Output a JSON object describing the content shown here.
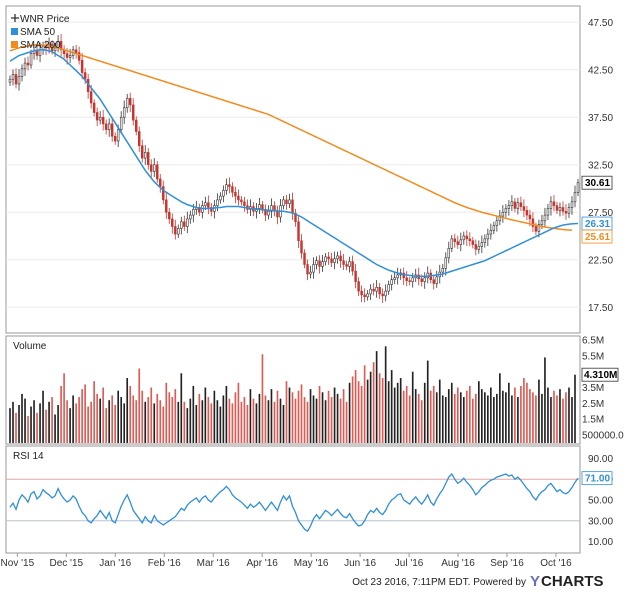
{
  "chart_data": [
    {
      "type": "line",
      "panel": "price",
      "legend": [
        {
          "name": "WNR Price",
          "color": "#333333",
          "marker": "cross"
        },
        {
          "name": "SMA 50",
          "color": "#2f8fd8",
          "marker": "square"
        },
        {
          "name": "SMA 200",
          "color": "#f08c1f",
          "marker": "square"
        }
      ],
      "legend_position": "top-left",
      "y_ticks": [
        47.5,
        42.5,
        37.5,
        32.5,
        27.5,
        22.5,
        17.5
      ],
      "y_tick_labels": [
        "47.50",
        "42.50",
        "37.50",
        "32.50",
        "27.50",
        "22.50",
        "17.50"
      ],
      "ylim": [
        15.0,
        49.0
      ],
      "x_ticks": [
        "Nov '15",
        "Dec '15",
        "Jan '16",
        "Feb '16",
        "Mar '16",
        "Apr '16",
        "May '16",
        "Jun '16",
        "Jul '16",
        "Aug '16",
        "Sep '16",
        "Oct '16"
      ],
      "last_values": [
        {
          "label": "30.61",
          "value": 30.61,
          "bg": "#ffffff",
          "fg": "#000000",
          "border": "#333333"
        },
        {
          "label": "26.31",
          "value": 26.31,
          "bg": "#ffffff",
          "fg": "#2f8fd8",
          "border": "#2f8fd8"
        },
        {
          "label": "25.61",
          "value": 25.61,
          "bg": "#ffffff",
          "fg": "#f08c1f",
          "border": "#f08c1f"
        }
      ],
      "series": [
        {
          "name": "WNR Price",
          "color": "#333333",
          "values": [
            41.5,
            42.0,
            41.0,
            41.8,
            42.6,
            43.2,
            43.0,
            44.2,
            44.5,
            44.0,
            44.6,
            45.0,
            44.8,
            45.2,
            44.5,
            44.8,
            45.5,
            44.6,
            44.2,
            43.8,
            44.0,
            44.6,
            44.3,
            43.5,
            42.2,
            41.5,
            40.2,
            39.0,
            38.0,
            37.2,
            37.5,
            36.8,
            36.2,
            36.8,
            35.5,
            35.0,
            36.2,
            37.5,
            38.5,
            39.5,
            38.8,
            37.2,
            36.0,
            34.5,
            33.2,
            33.8,
            32.5,
            31.8,
            32.5,
            31.0,
            30.2,
            28.8,
            27.5,
            26.8,
            26.0,
            25.2,
            25.8,
            26.5,
            26.0,
            26.8,
            27.2,
            27.8,
            28.0,
            27.5,
            28.2,
            28.5,
            28.0,
            27.6,
            28.2,
            28.8,
            29.2,
            29.8,
            30.4,
            30.2,
            29.6,
            29.2,
            28.8,
            28.6,
            28.2,
            27.8,
            28.1,
            27.6,
            27.9,
            28.3,
            27.8,
            27.2,
            27.6,
            28.2,
            27.6,
            27.0,
            28.2,
            28.8,
            28.4,
            28.8,
            27.4,
            26.5,
            24.5,
            23.2,
            22.0,
            21.0,
            21.2,
            22.0,
            22.4,
            21.8,
            22.3,
            22.8,
            22.6,
            22.2,
            22.6,
            22.9,
            22.4,
            22.0,
            21.8,
            22.3,
            21.3,
            20.2,
            19.2,
            18.8,
            18.6,
            18.9,
            19.4,
            19.2,
            19.6,
            18.9,
            18.7,
            19.2,
            19.9,
            20.4,
            20.6,
            20.9,
            21.1,
            20.6,
            20.3,
            20.2,
            20.6,
            20.9,
            20.5,
            20.2,
            20.6,
            21.1,
            20.4,
            20.0,
            20.7,
            21.2,
            21.6,
            22.7,
            23.7,
            24.7,
            24.4,
            24.1,
            24.6,
            25.0,
            24.7,
            24.5,
            24.1,
            23.6,
            23.9,
            24.3,
            24.7,
            25.2,
            25.6,
            26.1,
            26.6,
            27.1,
            27.5,
            27.9,
            28.2,
            28.6,
            27.9,
            28.5,
            28.1,
            27.7,
            27.2,
            26.8,
            26.0,
            25.5,
            26.2,
            26.6,
            27.2,
            27.9,
            28.6,
            28.2,
            27.7,
            28.0,
            27.6,
            27.4,
            28.0,
            28.6,
            29.6,
            30.61
          ]
        },
        {
          "name": "SMA 50",
          "color": "#2f8fd8",
          "values": [
            43.4,
            43.6,
            43.8,
            44.0,
            44.1,
            44.2,
            44.3,
            44.4,
            44.5,
            44.55,
            44.6,
            44.6,
            44.55,
            44.5,
            44.4,
            44.2,
            44.0,
            43.8,
            43.6,
            43.3,
            43.0,
            42.7,
            42.4,
            42.1,
            41.8,
            41.4,
            41.0,
            40.6,
            40.2,
            39.8,
            39.4,
            38.9,
            38.4,
            37.9,
            37.4,
            36.9,
            36.4,
            35.9,
            35.4,
            34.9,
            34.4,
            33.9,
            33.4,
            32.9,
            32.4,
            31.9,
            31.5,
            31.1,
            30.7,
            30.4,
            30.1,
            29.8,
            29.6,
            29.4,
            29.2,
            29.0,
            28.8,
            28.6,
            28.45,
            28.3,
            28.2,
            28.1,
            28.0,
            27.95,
            27.9,
            27.9,
            27.9,
            27.9,
            27.95,
            28.0,
            28.0,
            28.05,
            28.1,
            28.1,
            28.1,
            28.1,
            28.1,
            28.05,
            28.0,
            27.95,
            27.9,
            27.85,
            27.8,
            27.8,
            27.75,
            27.75,
            27.7,
            27.7,
            27.7,
            27.65,
            27.6,
            27.6,
            27.55,
            27.5,
            27.4,
            27.3,
            27.15,
            27.0,
            26.8,
            26.6,
            26.4,
            26.2,
            26.0,
            25.8,
            25.6,
            25.4,
            25.2,
            25.0,
            24.8,
            24.6,
            24.4,
            24.2,
            24.0,
            23.8,
            23.6,
            23.4,
            23.2,
            23.0,
            22.8,
            22.6,
            22.4,
            22.2,
            22.0,
            21.85,
            21.7,
            21.55,
            21.4,
            21.3,
            21.2,
            21.1,
            21.0,
            20.95,
            20.9,
            20.85,
            20.8,
            20.78,
            20.75,
            20.75,
            20.75,
            20.78,
            20.8,
            20.85,
            20.9,
            20.95,
            21.0,
            21.1,
            21.2,
            21.3,
            21.4,
            21.5,
            21.6,
            21.7,
            21.8,
            21.9,
            22.0,
            22.1,
            22.2,
            22.3,
            22.4,
            22.55,
            22.7,
            22.85,
            23.0,
            23.15,
            23.3,
            23.45,
            23.6,
            23.75,
            23.9,
            24.05,
            24.2,
            24.35,
            24.5,
            24.65,
            24.8,
            24.95,
            25.1,
            25.25,
            25.4,
            25.55,
            25.7,
            25.85,
            25.95,
            26.05,
            26.15,
            26.2,
            26.25,
            26.28,
            26.3,
            26.31
          ]
        },
        {
          "name": "SMA 200",
          "color": "#f08c1f",
          "values": [
            44.5,
            44.6,
            44.7,
            44.8,
            44.9,
            44.95,
            45.0,
            45.05,
            45.1,
            45.1,
            45.1,
            45.1,
            45.05,
            45.0,
            44.95,
            44.9,
            44.8,
            44.7,
            44.6,
            44.5,
            44.4,
            44.3,
            44.2,
            44.1,
            44.0,
            43.9,
            43.8,
            43.7,
            43.6,
            43.5,
            43.4,
            43.3,
            43.2,
            43.1,
            43.0,
            42.9,
            42.8,
            42.7,
            42.6,
            42.5,
            42.4,
            42.3,
            42.2,
            42.1,
            42.0,
            41.9,
            41.8,
            41.7,
            41.6,
            41.5,
            41.4,
            41.3,
            41.2,
            41.1,
            41.0,
            40.9,
            40.8,
            40.7,
            40.6,
            40.5,
            40.4,
            40.3,
            40.2,
            40.1,
            40.0,
            39.9,
            39.8,
            39.7,
            39.6,
            39.5,
            39.4,
            39.3,
            39.2,
            39.1,
            39.0,
            38.9,
            38.8,
            38.7,
            38.6,
            38.5,
            38.4,
            38.3,
            38.2,
            38.1,
            38.0,
            37.9,
            37.8,
            37.65,
            37.5,
            37.35,
            37.2,
            37.05,
            36.9,
            36.75,
            36.6,
            36.45,
            36.3,
            36.15,
            36.0,
            35.85,
            35.7,
            35.55,
            35.4,
            35.25,
            35.1,
            34.95,
            34.8,
            34.65,
            34.5,
            34.35,
            34.2,
            34.05,
            33.9,
            33.75,
            33.6,
            33.45,
            33.3,
            33.15,
            33.0,
            32.85,
            32.7,
            32.55,
            32.4,
            32.25,
            32.1,
            31.95,
            31.8,
            31.65,
            31.5,
            31.35,
            31.2,
            31.05,
            30.9,
            30.75,
            30.6,
            30.45,
            30.3,
            30.15,
            30.0,
            29.85,
            29.7,
            29.55,
            29.4,
            29.25,
            29.1,
            28.95,
            28.8,
            28.65,
            28.5,
            28.38,
            28.25,
            28.13,
            28.0,
            27.9,
            27.8,
            27.7,
            27.6,
            27.5,
            27.42,
            27.34,
            27.26,
            27.18,
            27.1,
            27.02,
            26.94,
            26.86,
            26.78,
            26.7,
            26.63,
            26.56,
            26.49,
            26.42,
            26.35,
            26.28,
            26.21,
            26.14,
            26.07,
            26.0,
            25.95,
            25.9,
            25.85,
            25.8,
            25.76,
            25.72,
            25.68,
            25.65,
            25.63,
            25.61
          ]
        }
      ]
    },
    {
      "type": "bar",
      "panel": "volume",
      "title": "Volume",
      "up_color": "#222222",
      "down_color": "#e05a52",
      "y_ticks": [
        500000,
        1500000,
        2500000,
        3500000,
        4500000,
        5500000,
        6500000
      ],
      "y_tick_labels": [
        "500000.0",
        "1.5M",
        "2.5M",
        "3.5M",
        "4.5M",
        "5.5M",
        "6.5M"
      ],
      "ylim": [
        0,
        6500000
      ],
      "last_value": {
        "label": "4.310M",
        "value": 4310000
      },
      "values": [
        2200000,
        2600000,
        1900000,
        2400000,
        3100000,
        2800000,
        1700000,
        2300000,
        2700000,
        1900000,
        2500000,
        3300000,
        2100000,
        2600000,
        2900000,
        1800000,
        2400000,
        3600000,
        4400000,
        2700000,
        2200000,
        3000000,
        2500000,
        2900000,
        3400000,
        3700000,
        2300000,
        2600000,
        3900000,
        3100000,
        2800000,
        3500000,
        2200000,
        2700000,
        3000000,
        2400000,
        3300000,
        2900000,
        2500000,
        4100000,
        3600000,
        3000000,
        2700000,
        4700000,
        3300000,
        2600000,
        2900000,
        3500000,
        2500000,
        3100000,
        2700000,
        2300000,
        3800000,
        3200000,
        2900000,
        3400000,
        2600000,
        4400000,
        2600000,
        2200000,
        2800000,
        3600000,
        2400000,
        3100000,
        2700000,
        3500000,
        2900000,
        2500000,
        3300000,
        2700000,
        2300000,
        3000000,
        3600000,
        2800000,
        2500000,
        3200000,
        3800000,
        2600000,
        2900000,
        2400000,
        3400000,
        2800000,
        2500000,
        3100000,
        5600000,
        3000000,
        2700000,
        3400000,
        2600000,
        3300000,
        2800000,
        2400000,
        3900000,
        3500000,
        3200000,
        2800000,
        3300000,
        3700000,
        2900000,
        2600000,
        3400000,
        3000000,
        2800000,
        3600000,
        3200000,
        2700000,
        3300000,
        2900000,
        3500000,
        3100000,
        2800000,
        3400000,
        2600000,
        3800000,
        4200000,
        4600000,
        3900000,
        3600000,
        4900000,
        4000000,
        4500000,
        5100000,
        5800000,
        4400000,
        4100000,
        6100000,
        3900000,
        4600000,
        3500000,
        3800000,
        4100000,
        3300000,
        3600000,
        3000000,
        4500000,
        3400000,
        3100000,
        2700000,
        3800000,
        5200000,
        3300000,
        3600000,
        3200000,
        4000000,
        3000000,
        2900000,
        3400000,
        3800000,
        3100000,
        3500000,
        3200000,
        2900000,
        3300000,
        3600000,
        2800000,
        3100000,
        3900000,
        3400000,
        3200000,
        3000000,
        3500000,
        2900000,
        3100000,
        4400000,
        3300000,
        3200000,
        3800000,
        3000000,
        3500000,
        2900000,
        3600000,
        4100000,
        3800000,
        3400000,
        3200000,
        3000000,
        4000000,
        3100000,
        5400000,
        3500000,
        2900000,
        3300000,
        3000000,
        3400000,
        2800000,
        3200000,
        3500000,
        2900000,
        4310000
      ]
    },
    {
      "type": "line",
      "panel": "rsi",
      "title": "RSI 14",
      "color": "#2f8fd8",
      "y_ticks": [
        10,
        30,
        50,
        70,
        90
      ],
      "y_tick_labels": [
        "10.00",
        "30.00",
        "50.00",
        "70.00",
        "90.00"
      ],
      "ylim": [
        0,
        100
      ],
      "ref_lines": [
        30,
        70
      ],
      "last_value": {
        "label": "71.00",
        "value": 71.0
      },
      "values": [
        43,
        47,
        41,
        50,
        55,
        52,
        48,
        56,
        58,
        51,
        54,
        60,
        57,
        55,
        52,
        54,
        61,
        55,
        51,
        48,
        50,
        54,
        51,
        44,
        38,
        35,
        30,
        28,
        32,
        35,
        40,
        36,
        32,
        38,
        30,
        28,
        36,
        44,
        50,
        55,
        48,
        40,
        36,
        32,
        28,
        34,
        30,
        28,
        35,
        30,
        28,
        26,
        28,
        30,
        32,
        34,
        38,
        42,
        40,
        45,
        48,
        50,
        52,
        48,
        52,
        54,
        50,
        48,
        52,
        55,
        58,
        60,
        63,
        60,
        55,
        52,
        50,
        48,
        45,
        42,
        46,
        43,
        45,
        48,
        44,
        40,
        44,
        48,
        44,
        40,
        48,
        54,
        50,
        54,
        44,
        38,
        30,
        26,
        22,
        20,
        25,
        32,
        36,
        32,
        36,
        40,
        38,
        35,
        38,
        41,
        37,
        34,
        33,
        37,
        32,
        28,
        25,
        26,
        30,
        36,
        40,
        38,
        42,
        38,
        36,
        40,
        46,
        50,
        52,
        55,
        56,
        50,
        48,
        46,
        50,
        53,
        49,
        46,
        50,
        55,
        48,
        45,
        51,
        56,
        60,
        66,
        72,
        75,
        70,
        66,
        68,
        71,
        67,
        64,
        60,
        55,
        58,
        62,
        64,
        67,
        69,
        70,
        72,
        73,
        74,
        75,
        73,
        74,
        70,
        72,
        69,
        65,
        61,
        58,
        53,
        50,
        55,
        58,
        60,
        64,
        66,
        62,
        58,
        60,
        57,
        56,
        58,
        62,
        67,
        71.0
      ]
    }
  ],
  "footer": {
    "text": "Oct 23 2016, 7:11PM EDT.  Powered by",
    "logo_y": "Y",
    "logo_rest": "CHARTS",
    "logo_color": "#6a6fb8"
  }
}
